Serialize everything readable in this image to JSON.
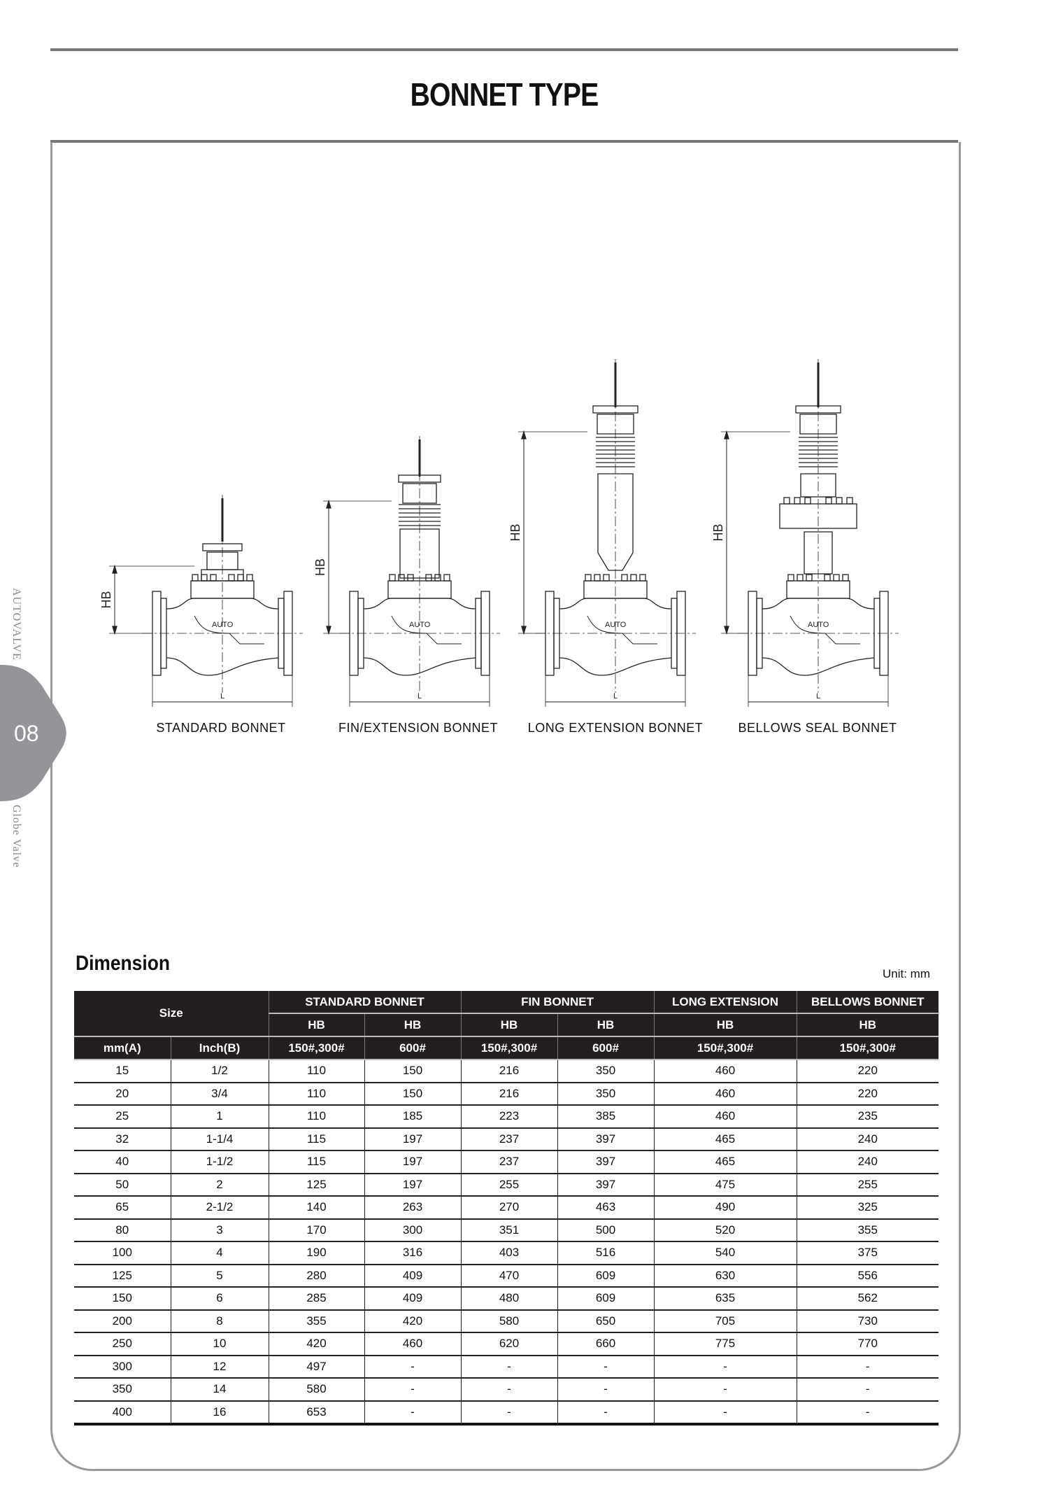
{
  "page": {
    "title": "BONNET TYPE"
  },
  "side_tab": {
    "brand": "AUTOVALVE",
    "number": "08",
    "section": "Globe Valve",
    "color": "#939598"
  },
  "drawings": [
    {
      "label": "STANDARD BONNET",
      "type": "standard",
      "dim_height": "HB",
      "dim_length": "L",
      "body_mark": "AUTO"
    },
    {
      "label": "FIN/EXTENSION BONNET",
      "type": "fin",
      "dim_height": "HB",
      "dim_length": "L",
      "body_mark": "AUTO"
    },
    {
      "label": "LONG EXTENSION BONNET",
      "type": "long",
      "dim_height": "HB",
      "dim_length": "L",
      "body_mark": "AUTO"
    },
    {
      "label": "BELLOWS SEAL BONNET",
      "type": "bellows",
      "dim_height": "HB",
      "dim_length": "L",
      "body_mark": "AUTO"
    }
  ],
  "dimension": {
    "title": "Dimension",
    "unit": "Unit: mm",
    "header": {
      "size": "Size",
      "groups": [
        "STANDARD BONNET",
        "FIN BONNET",
        "LONG EXTENSION",
        "BELLOWS BONNET"
      ],
      "hb": [
        "HB",
        "HB",
        "HB",
        "HB",
        "HB",
        "HB"
      ],
      "sub": [
        "mm(A)",
        "Inch(B)",
        "150#,300#",
        "600#",
        "150#,300#",
        "600#",
        "150#,300#",
        "150#,300#"
      ]
    },
    "rows": [
      [
        "15",
        "1/2",
        "110",
        "150",
        "216",
        "350",
        "460",
        "220"
      ],
      [
        "20",
        "3/4",
        "110",
        "150",
        "216",
        "350",
        "460",
        "220"
      ],
      [
        "25",
        "1",
        "110",
        "185",
        "223",
        "385",
        "460",
        "235"
      ],
      [
        "32",
        "1-1/4",
        "115",
        "197",
        "237",
        "397",
        "465",
        "240"
      ],
      [
        "40",
        "1-1/2",
        "115",
        "197",
        "237",
        "397",
        "465",
        "240"
      ],
      [
        "50",
        "2",
        "125",
        "197",
        "255",
        "397",
        "475",
        "255"
      ],
      [
        "65",
        "2-1/2",
        "140",
        "263",
        "270",
        "463",
        "490",
        "325"
      ],
      [
        "80",
        "3",
        "170",
        "300",
        "351",
        "500",
        "520",
        "355"
      ],
      [
        "100",
        "4",
        "190",
        "316",
        "403",
        "516",
        "540",
        "375"
      ],
      [
        "125",
        "5",
        "280",
        "409",
        "470",
        "609",
        "630",
        "556"
      ],
      [
        "150",
        "6",
        "285",
        "409",
        "480",
        "609",
        "635",
        "562"
      ],
      [
        "200",
        "8",
        "355",
        "420",
        "580",
        "650",
        "705",
        "730"
      ],
      [
        "250",
        "10",
        "420",
        "460",
        "620",
        "660",
        "775",
        "770"
      ],
      [
        "300",
        "12",
        "497",
        "-",
        "-",
        "-",
        "-",
        "-"
      ],
      [
        "350",
        "14",
        "580",
        "-",
        "-",
        "-",
        "-",
        "-"
      ],
      [
        "400",
        "16",
        "653",
        "-",
        "-",
        "-",
        "-",
        "-"
      ]
    ]
  }
}
